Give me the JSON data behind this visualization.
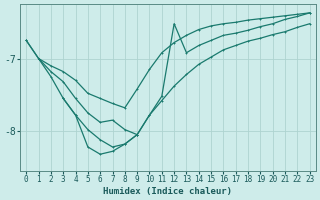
{
  "xlabel": "Humidex (Indice chaleur)",
  "bg_color": "#ceecea",
  "grid_color": "#aed4d0",
  "line_color": "#1a7a6e",
  "xlim": [
    -0.5,
    23.5
  ],
  "ylim": [
    -8.55,
    -6.25
  ],
  "yticks": [
    -8,
    -7
  ],
  "xticks": [
    0,
    1,
    2,
    3,
    4,
    5,
    6,
    7,
    8,
    9,
    10,
    11,
    12,
    13,
    14,
    15,
    16,
    17,
    18,
    19,
    20,
    21,
    22,
    23
  ],
  "line1_x": [
    0,
    1,
    2,
    3,
    4,
    5,
    6,
    7,
    8,
    9,
    10,
    11,
    12,
    13,
    14,
    15,
    16,
    17,
    18,
    19,
    20,
    21,
    22,
    23
  ],
  "line1_y": [
    -6.75,
    -7.0,
    -7.1,
    -7.18,
    -7.3,
    -7.48,
    -7.55,
    -7.62,
    -7.68,
    -7.42,
    -7.15,
    -6.92,
    -6.78,
    -6.68,
    -6.6,
    -6.55,
    -6.52,
    -6.5,
    -6.47,
    -6.45,
    -6.43,
    -6.41,
    -6.39,
    -6.37
  ],
  "line2_x": [
    1,
    2,
    3,
    4,
    5,
    6,
    7,
    8,
    9,
    10,
    11,
    12,
    13,
    14,
    15,
    16,
    17,
    18,
    19,
    20,
    21,
    22,
    23
  ],
  "line2_y": [
    -7.0,
    -7.18,
    -7.32,
    -7.55,
    -7.75,
    -7.88,
    -7.85,
    -7.98,
    -8.05,
    -7.78,
    -7.58,
    -7.38,
    -7.22,
    -7.08,
    -6.98,
    -6.88,
    -6.82,
    -6.76,
    -6.72,
    -6.67,
    -6.63,
    -6.57,
    -6.52
  ],
  "line3_x": [
    0,
    1,
    2,
    3,
    4,
    5,
    6,
    7,
    8,
    9,
    10,
    11,
    12,
    13,
    14,
    15,
    16,
    17,
    18,
    19,
    20,
    21,
    22,
    23
  ],
  "line3_y": [
    -6.75,
    -7.0,
    -7.25,
    -7.55,
    -7.78,
    -7.98,
    -8.12,
    -8.22,
    -8.18,
    -8.05,
    -7.78,
    -7.52,
    -6.52,
    -6.92,
    -6.82,
    -6.75,
    -6.68,
    -6.65,
    -6.61,
    -6.56,
    -6.52,
    -6.46,
    -6.42,
    -6.37
  ],
  "line4_x": [
    3,
    4,
    5,
    6,
    7,
    8,
    9
  ],
  "line4_y": [
    -7.55,
    -7.78,
    -8.22,
    -8.32,
    -8.28,
    -8.18,
    -8.05
  ]
}
